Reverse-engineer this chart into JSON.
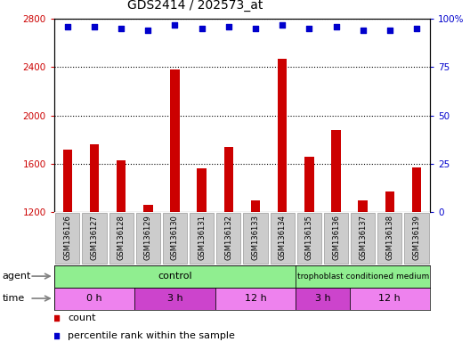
{
  "title": "GDS2414 / 202573_at",
  "samples": [
    "GSM136126",
    "GSM136127",
    "GSM136128",
    "GSM136129",
    "GSM136130",
    "GSM136131",
    "GSM136132",
    "GSM136133",
    "GSM136134",
    "GSM136135",
    "GSM136136",
    "GSM136137",
    "GSM136138",
    "GSM136139"
  ],
  "counts": [
    1720,
    1760,
    1630,
    1260,
    2380,
    1560,
    1740,
    1300,
    2470,
    1660,
    1880,
    1300,
    1370,
    1570
  ],
  "percentile_ranks": [
    96,
    96,
    95,
    94,
    97,
    95,
    96,
    95,
    97,
    95,
    96,
    94,
    94,
    95
  ],
  "bar_color": "#cc0000",
  "dot_color": "#0000cc",
  "ylim_left": [
    1200,
    2800
  ],
  "ylim_right": [
    0,
    100
  ],
  "yticks_left": [
    1200,
    1600,
    2000,
    2400,
    2800
  ],
  "yticks_right": [
    0,
    25,
    50,
    75,
    100
  ],
  "grid_lines_at": [
    1600,
    2000,
    2400
  ],
  "tick_label_color_left": "#cc0000",
  "tick_label_color_right": "#0000cc",
  "bar_color_hex": "#cc0000",
  "dot_color_hex": "#0000cc",
  "xlabels_bg": "#cccccc",
  "agent_control_color": "#90ee90",
  "agent_troph_color": "#90ee90",
  "time_color_a": "#ee82ee",
  "time_color_b": "#cc44cc",
  "time_groups": [
    {
      "label": "0 h",
      "start": 0,
      "end": 3,
      "alt": false
    },
    {
      "label": "3 h",
      "start": 3,
      "end": 6,
      "alt": true
    },
    {
      "label": "12 h",
      "start": 6,
      "end": 9,
      "alt": false
    },
    {
      "label": "3 h",
      "start": 9,
      "end": 11,
      "alt": true
    },
    {
      "label": "12 h",
      "start": 11,
      "end": 14,
      "alt": false
    }
  ]
}
